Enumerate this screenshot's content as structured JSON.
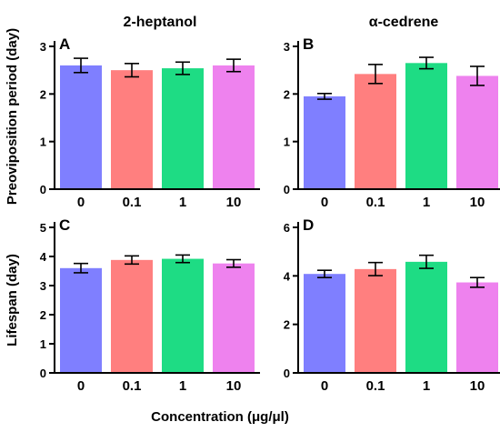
{
  "figure": {
    "shared_ylabel_top": "Preoviposition period (day)",
    "shared_ylabel_bottom": "Lifespan (day)",
    "shared_xlabel": "Concentration (μg/μl)"
  },
  "chart_data": [
    {
      "type": "bar",
      "panel": "A",
      "title": "2-heptanol",
      "xlabel": "",
      "ylabel": "Preoviposition period (day)",
      "categories": [
        "0",
        "0.1",
        "1",
        "10"
      ],
      "values": [
        2.6,
        2.5,
        2.54,
        2.6
      ],
      "errors": [
        0.15,
        0.14,
        0.13,
        0.13
      ],
      "colors": [
        "#7f7fff",
        "#ff7f7f",
        "#1edc84",
        "#ee82ee"
      ],
      "ylim": [
        0,
        3
      ],
      "yticks": [
        "0",
        "1",
        "2",
        "3"
      ],
      "grid": false
    },
    {
      "type": "bar",
      "panel": "B",
      "title": "α-cedrene",
      "xlabel": "",
      "ylabel": "",
      "categories": [
        "0",
        "0.1",
        "1",
        "10"
      ],
      "values": [
        1.95,
        2.42,
        2.65,
        2.38
      ],
      "errors": [
        0.06,
        0.2,
        0.12,
        0.2
      ],
      "colors": [
        "#7f7fff",
        "#ff7f7f",
        "#1edc84",
        "#ee82ee"
      ],
      "ylim": [
        0,
        3
      ],
      "yticks": [
        "0",
        "1",
        "2",
        "3"
      ],
      "grid": false
    },
    {
      "type": "bar",
      "panel": "C",
      "title": "",
      "xlabel": "",
      "ylabel": "Lifespan (day)",
      "categories": [
        "0",
        "0.1",
        "1",
        "10"
      ],
      "values": [
        3.6,
        3.88,
        3.92,
        3.76
      ],
      "errors": [
        0.16,
        0.14,
        0.13,
        0.13
      ],
      "colors": [
        "#7f7fff",
        "#ff7f7f",
        "#1edc84",
        "#ee82ee"
      ],
      "ylim": [
        0,
        5
      ],
      "yticks": [
        "0",
        "1",
        "2",
        "3",
        "4",
        "5"
      ],
      "grid": false
    },
    {
      "type": "bar",
      "panel": "D",
      "title": "",
      "xlabel": "",
      "ylabel": "",
      "categories": [
        "0",
        "0.1",
        "1",
        "10"
      ],
      "values": [
        4.08,
        4.28,
        4.58,
        3.73
      ],
      "errors": [
        0.15,
        0.27,
        0.27,
        0.2
      ],
      "colors": [
        "#7f7fff",
        "#ff7f7f",
        "#1edc84",
        "#ee82ee"
      ],
      "ylim": [
        0,
        6
      ],
      "yticks": [
        "0",
        "2",
        "4",
        "6"
      ],
      "grid": false
    }
  ]
}
